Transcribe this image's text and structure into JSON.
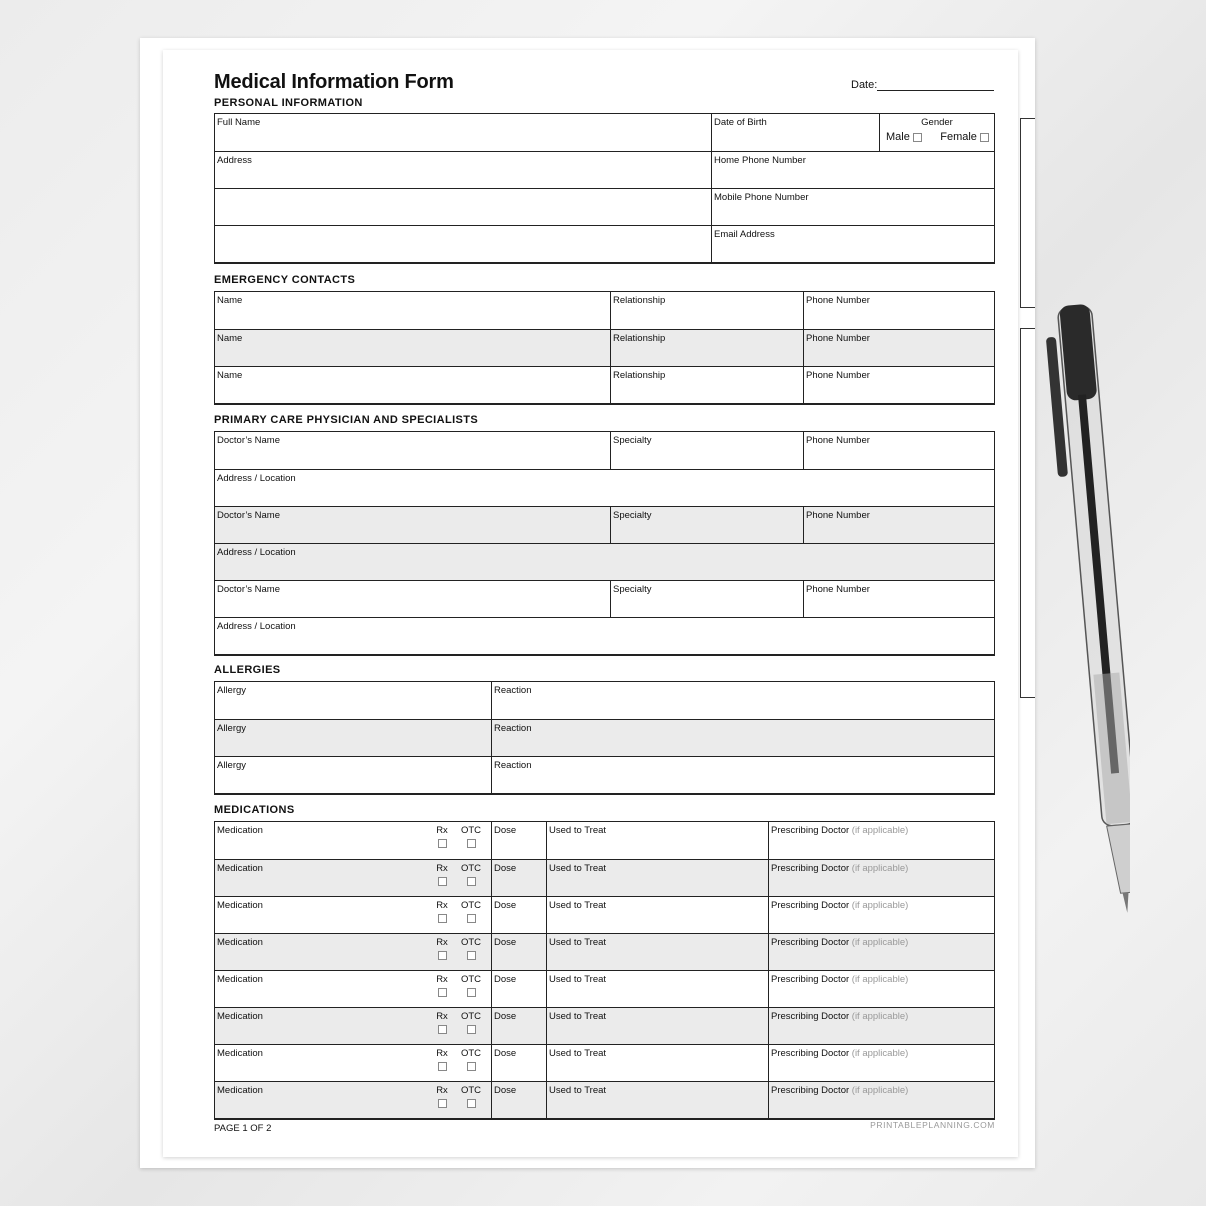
{
  "title": "Medical Information Form",
  "date_label": "Date:",
  "personal": {
    "heading": "PERSONAL INFORMATION",
    "full_name": "Full Name",
    "dob": "Date of Birth",
    "gender": "Gender",
    "male": "Male",
    "female": "Female",
    "address": "Address",
    "home_phone": "Home Phone Number",
    "mobile_phone": "Mobile Phone Number",
    "email": "Email Address"
  },
  "emergency": {
    "heading": "EMERGENCY CONTACTS",
    "rows": [
      [
        "Name",
        "Relationship",
        "Phone Number"
      ],
      [
        "Name",
        "Relationship",
        "Phone Number"
      ],
      [
        "Name",
        "Relationship",
        "Phone Number"
      ]
    ]
  },
  "physicians": {
    "heading": "PRIMARY CARE PHYSICIAN AND SPECIALISTS",
    "doctor": "Doctor’s Name",
    "specialty": "Specialty",
    "phone": "Phone Number",
    "address": "Address / Location"
  },
  "allergies": {
    "heading": "ALLERGIES",
    "allergy": "Allergy",
    "reaction": "Reaction"
  },
  "medications": {
    "heading": "MEDICATIONS",
    "medication": "Medication",
    "rx": "Rx",
    "otc": "OTC",
    "dose": "Dose",
    "used_to_treat": "Used to Treat",
    "prescribing": "Prescribing Doctor",
    "if_applicable": "(if applicable)",
    "count": 8
  },
  "footer": {
    "page": "PAGE 1 OF 2",
    "brand": "PRINTABLEPLANNING.COM"
  }
}
